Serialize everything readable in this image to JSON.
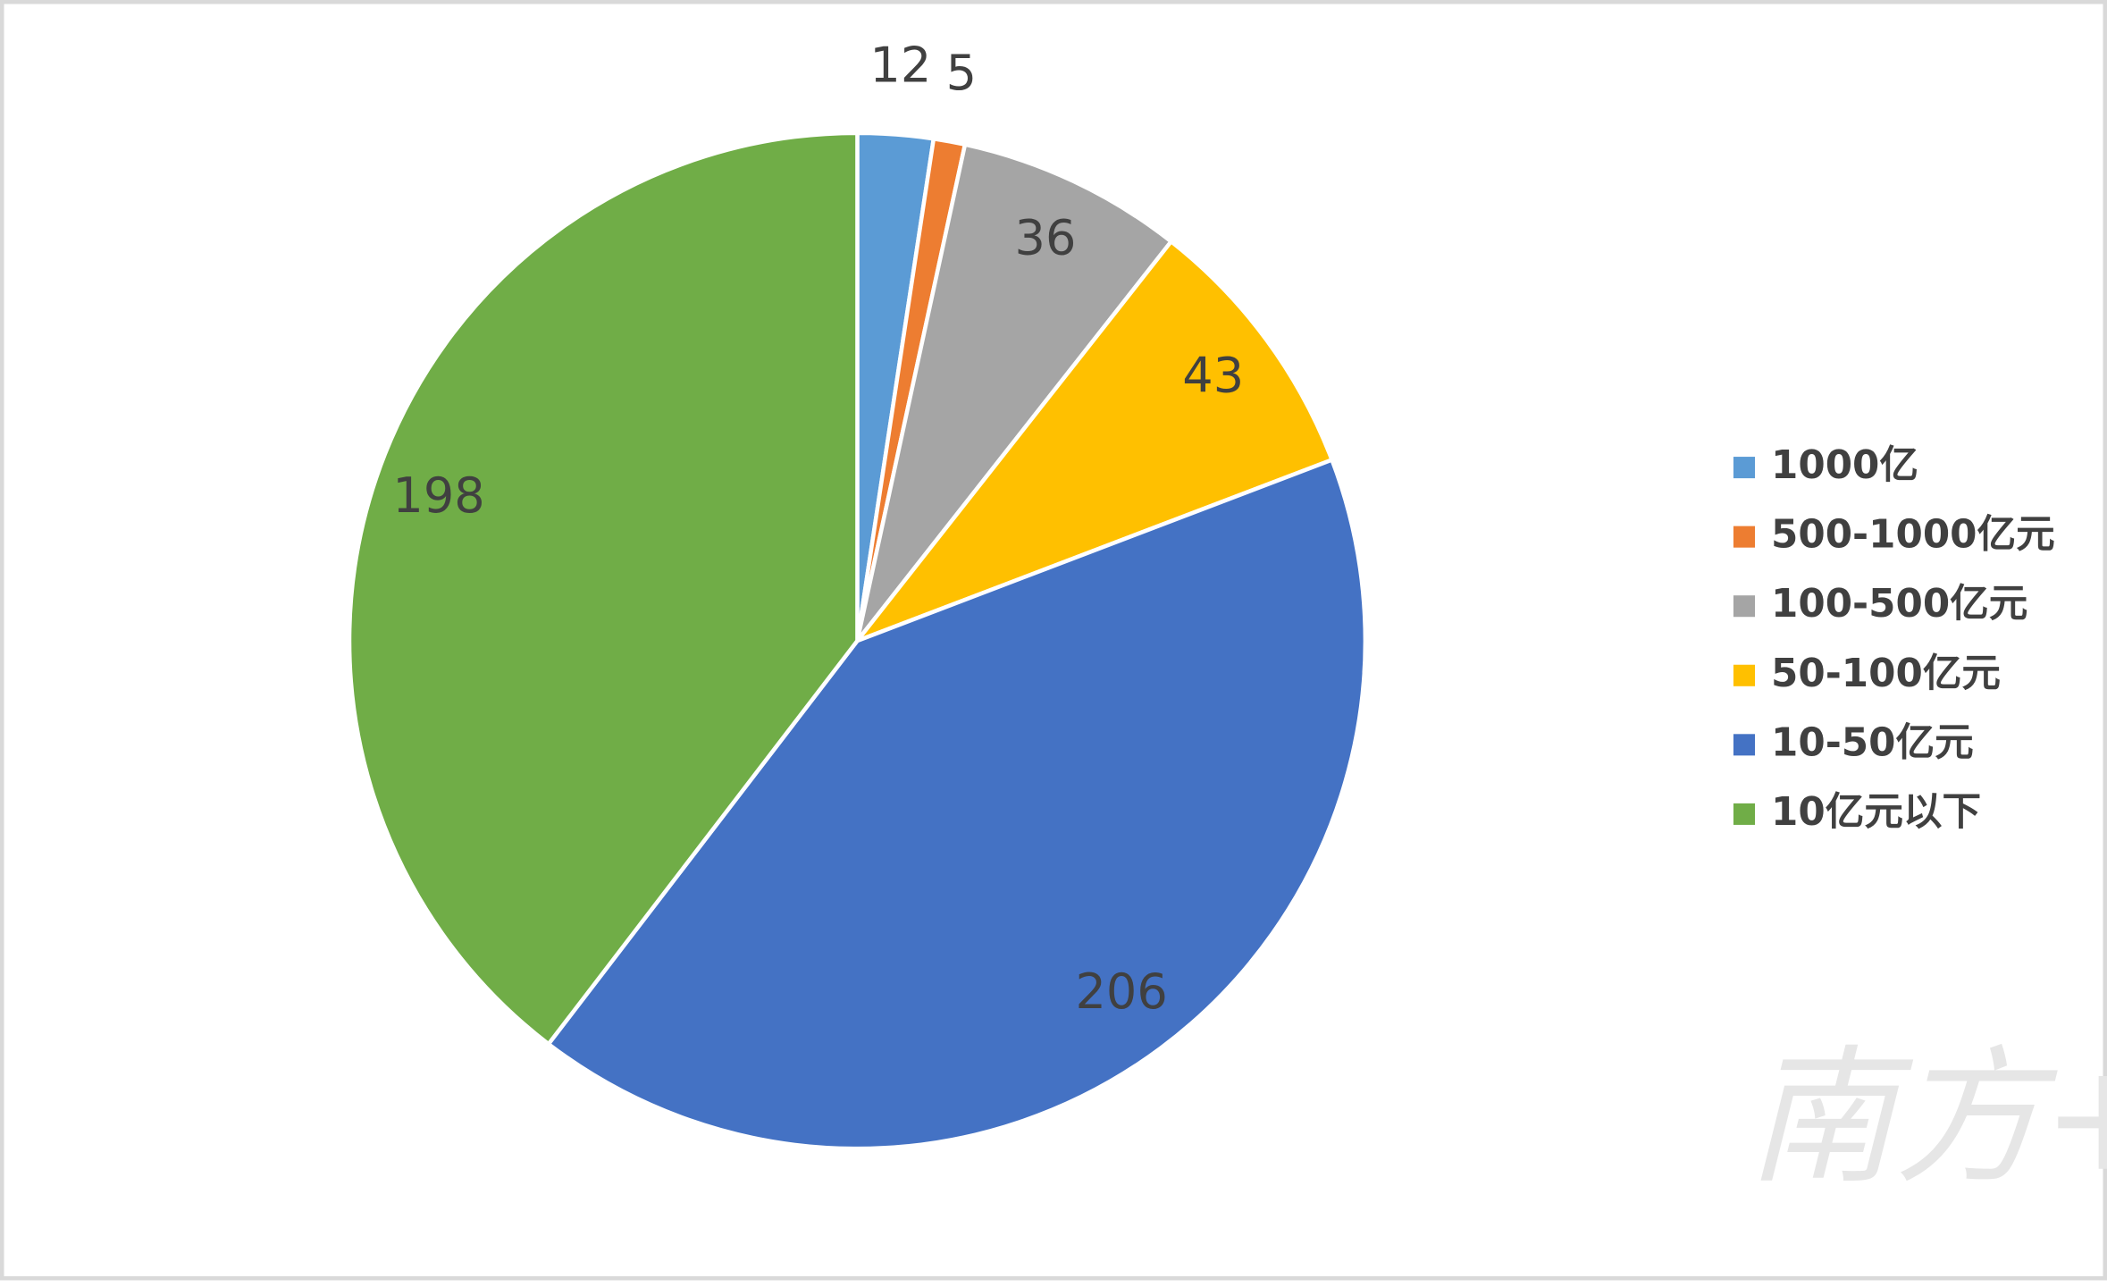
{
  "chart_data": {
    "type": "pie",
    "categories": [
      "1000亿",
      "500-1000亿元",
      "100-500亿元",
      "50-100亿元",
      "10-50亿元",
      "10亿元以下"
    ],
    "values": [
      12,
      5,
      36,
      43,
      206,
      198
    ],
    "colors": [
      "#5b9bd5",
      "#ed7d31",
      "#a5a5a5",
      "#ffc000",
      "#4472c4",
      "#70ad47"
    ],
    "legend": "right",
    "watermark": "南方+"
  }
}
